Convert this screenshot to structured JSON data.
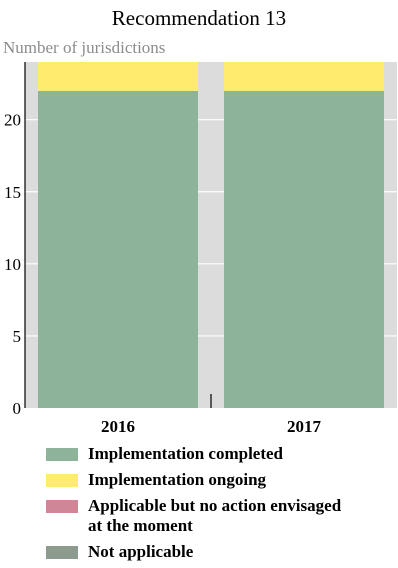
{
  "chart_data": {
    "type": "bar",
    "stacked": true,
    "title": "Recommendation 13",
    "ylabel": "Number of jurisdictions",
    "xlabel": "",
    "categories": [
      "2016",
      "2017"
    ],
    "ylim": [
      0,
      24
    ],
    "yticks": [
      0,
      5,
      10,
      15,
      20
    ],
    "grid": true,
    "legend_position": "bottom",
    "series": [
      {
        "name": "Implementation completed",
        "color": "#8db39a",
        "values": [
          22,
          22
        ]
      },
      {
        "name": "Implementation ongoing",
        "color": "#ffec6e",
        "values": [
          2,
          2
        ]
      },
      {
        "name": "Applicable but no action envisaged\nat the moment",
        "color": "#cf8798",
        "values": [
          0,
          0
        ]
      },
      {
        "name": "Not applicable",
        "color": "#8d9a8e",
        "values": [
          0,
          0
        ]
      }
    ]
  },
  "colors": {
    "plot_background": "#dcdcdc",
    "gridline": "#ffffff"
  }
}
